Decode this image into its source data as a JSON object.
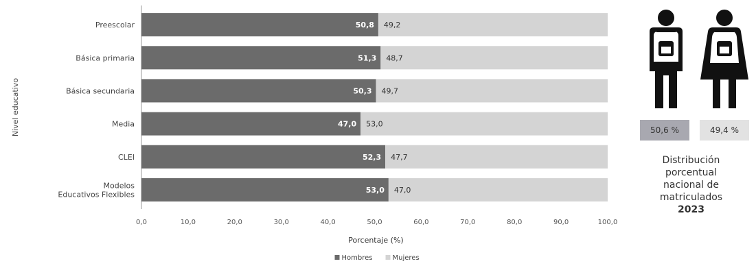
{
  "chart_data": {
    "type": "bar",
    "orientation": "horizontal",
    "stacked": true,
    "categories": [
      "Preescolar",
      "Básica primaria",
      "Básica secundaria",
      "Media",
      "CLEI",
      "Modelos Educativos Flexibles"
    ],
    "series": [
      {
        "name": "Hombres",
        "values": [
          50.8,
          51.3,
          50.3,
          47.0,
          52.3,
          53.0
        ],
        "labels": [
          "50,8",
          "51,3",
          "50,3",
          "47,0",
          "52,3",
          "53,0"
        ]
      },
      {
        "name": "Mujeres",
        "values": [
          49.2,
          48.7,
          49.7,
          53.0,
          47.7,
          47.0
        ],
        "labels": [
          "49,2",
          "48,7",
          "49,7",
          "53,0",
          "47,7",
          "47,0"
        ]
      }
    ],
    "xlabel": "Porcentaje (%)",
    "ylabel": "Nivel educativo",
    "xlim": [
      0,
      100
    ],
    "ticks": [
      0,
      10,
      20,
      30,
      40,
      50,
      60,
      70,
      80,
      90,
      100
    ],
    "tick_labels": [
      "0,0",
      "10,0",
      "20,0",
      "30,0",
      "40,0",
      "50,0",
      "60,0",
      "70,0",
      "80,0",
      "90,0",
      "100,0"
    ],
    "legend_position": "bottom",
    "grid": false,
    "colors": {
      "hombres": "#6b6b6b",
      "mujeres": "#d4d4d4"
    }
  },
  "side_panel": {
    "male_percent": "50,6 %",
    "female_percent": "49,4 %",
    "caption_lines": [
      "Distribución",
      "porcentual",
      "nacional de",
      "matriculados"
    ],
    "year": "2023",
    "icons": [
      "male-student-icon",
      "female-student-icon"
    ]
  }
}
